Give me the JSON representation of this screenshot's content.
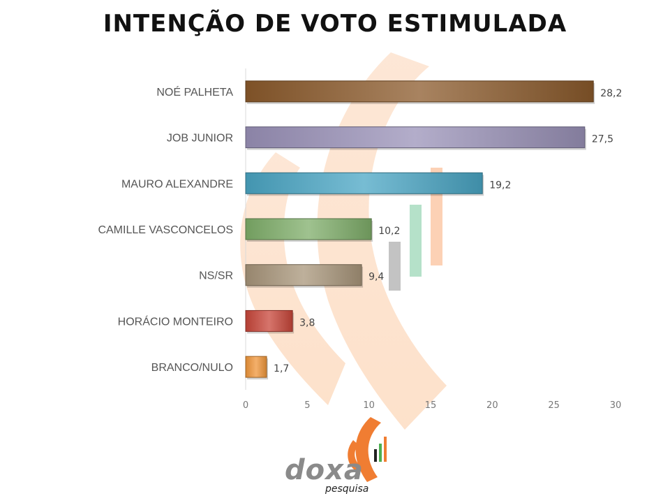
{
  "chart_data": {
    "type": "bar",
    "orientation": "horizontal",
    "title": "INTENÇÃO DE VOTO ESTIMULADA",
    "categories": [
      "NOÉ PALHETA",
      "JOB JUNIOR",
      "MAURO ALEXANDRE",
      "CAMILLE VASCONCELOS",
      "NS/SR",
      "HORÁCIO MONTEIRO",
      "BRANCO/NULO"
    ],
    "values": [
      28.2,
      27.5,
      19.2,
      10.2,
      9.4,
      3.8,
      1.7
    ],
    "value_labels": [
      "28,2",
      "27,5",
      "19,2",
      "10,2",
      "9,4",
      "3,8",
      "1,7"
    ],
    "bar_colors": [
      "#8b5a2b",
      "#9a92b8",
      "#4aa6c4",
      "#7fae6a",
      "#a8957a",
      "#c8463a",
      "#f0963a"
    ],
    "xlim": [
      0,
      30
    ],
    "xticks": [
      "0",
      "5",
      "10",
      "15",
      "20",
      "25",
      "30"
    ],
    "grid": false,
    "legend": "none"
  },
  "logo": {
    "word": "doxa",
    "subword": "pesquisa",
    "accent": "#f07d32"
  }
}
